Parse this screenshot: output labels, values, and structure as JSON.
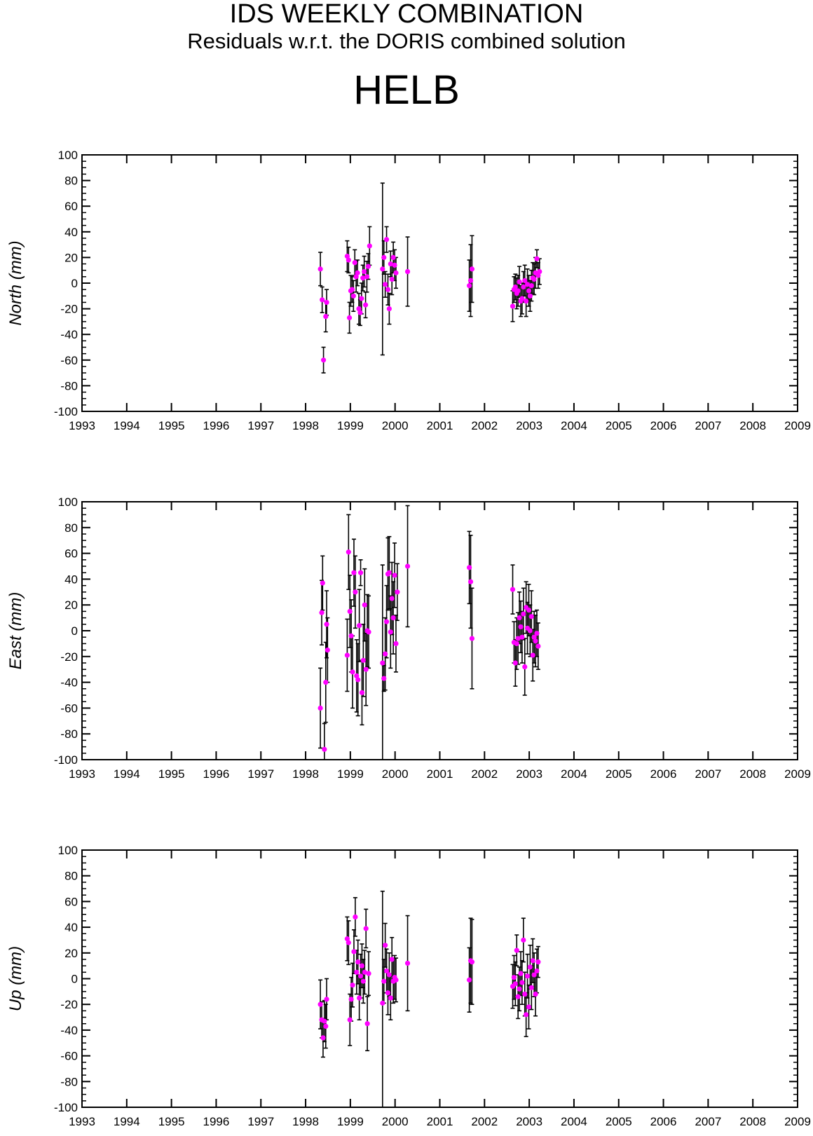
{
  "header": {
    "title": "IDS WEEKLY COMBINATION",
    "subtitle": "Residuals w.r.t. the DORIS combined solution",
    "station": "HELB"
  },
  "colors": {
    "point": "#ff00ff",
    "errorbar": "#000000",
    "axis": "#000000"
  },
  "chart_data": [
    {
      "type": "scatter",
      "ylabel": "North (mm)",
      "xlim": [
        1993,
        2009
      ],
      "ylim": [
        -100,
        100
      ],
      "xticks": [
        "1993",
        "1994",
        "1995",
        "1996",
        "1997",
        "1998",
        "1999",
        "2000",
        "2001",
        "2002",
        "2003",
        "2004",
        "2005",
        "2006",
        "2007",
        "2008",
        "2009"
      ],
      "yticks": [
        "100",
        "80",
        "60",
        "40",
        "20",
        "0",
        "-20",
        "-40",
        "-60",
        "-80",
        "-100"
      ],
      "points": [
        {
          "x": 1998.33,
          "y": 11,
          "err": 13
        },
        {
          "x": 1998.37,
          "y": -13,
          "err": 10
        },
        {
          "x": 1998.4,
          "y": -60,
          "err": 10
        },
        {
          "x": 1998.45,
          "y": -26,
          "err": 12
        },
        {
          "x": 1998.47,
          "y": -15,
          "err": 10
        },
        {
          "x": 1998.93,
          "y": 21,
          "err": 12
        },
        {
          "x": 1998.96,
          "y": 18,
          "err": 10
        },
        {
          "x": 1998.98,
          "y": -27,
          "err": 12
        },
        {
          "x": 1999.01,
          "y": -6,
          "err": 12
        },
        {
          "x": 1999.04,
          "y": -5,
          "err": 10
        },
        {
          "x": 1999.07,
          "y": -10,
          "err": 12
        },
        {
          "x": 1999.1,
          "y": 16,
          "err": 10
        },
        {
          "x": 1999.13,
          "y": 5,
          "err": 12
        },
        {
          "x": 1999.16,
          "y": 8,
          "err": 10
        },
        {
          "x": 1999.19,
          "y": -20,
          "err": 12
        },
        {
          "x": 1999.22,
          "y": -23,
          "err": 10
        },
        {
          "x": 1999.25,
          "y": -12,
          "err": 12
        },
        {
          "x": 1999.28,
          "y": 4,
          "err": 10
        },
        {
          "x": 1999.31,
          "y": 9,
          "err": 12
        },
        {
          "x": 1999.34,
          "y": -17,
          "err": 10
        },
        {
          "x": 1999.37,
          "y": 5,
          "err": 12
        },
        {
          "x": 1999.4,
          "y": 13,
          "err": 10
        },
        {
          "x": 1999.43,
          "y": 29,
          "err": 15
        },
        {
          "x": 1999.72,
          "y": 11,
          "err": 67
        },
        {
          "x": 1999.75,
          "y": 20,
          "err": 13
        },
        {
          "x": 1999.78,
          "y": -1,
          "err": 10
        },
        {
          "x": 1999.81,
          "y": 34,
          "err": 10
        },
        {
          "x": 1999.84,
          "y": -5,
          "err": 12
        },
        {
          "x": 1999.87,
          "y": -20,
          "err": 12
        },
        {
          "x": 1999.9,
          "y": 15,
          "err": 10
        },
        {
          "x": 1999.93,
          "y": 3,
          "err": 12
        },
        {
          "x": 1999.96,
          "y": 20,
          "err": 12
        },
        {
          "x": 1999.99,
          "y": 14,
          "err": 12
        },
        {
          "x": 2000.02,
          "y": 8,
          "err": 12
        },
        {
          "x": 2000.28,
          "y": 9,
          "err": 27
        },
        {
          "x": 2001.66,
          "y": -2,
          "err": 20
        },
        {
          "x": 2001.69,
          "y": 2,
          "err": 28
        },
        {
          "x": 2001.72,
          "y": 11,
          "err": 26
        },
        {
          "x": 2002.63,
          "y": -18,
          "err": 12
        },
        {
          "x": 2002.66,
          "y": -5,
          "err": 10
        },
        {
          "x": 2002.69,
          "y": -3,
          "err": 10
        },
        {
          "x": 2002.72,
          "y": -8,
          "err": 12
        },
        {
          "x": 2002.75,
          "y": -6,
          "err": 12
        },
        {
          "x": 2002.78,
          "y": 1,
          "err": 12
        },
        {
          "x": 2002.81,
          "y": -14,
          "err": 12
        },
        {
          "x": 2002.84,
          "y": -12,
          "err": 12
        },
        {
          "x": 2002.87,
          "y": -3,
          "err": 12
        },
        {
          "x": 2002.9,
          "y": 2,
          "err": 12
        },
        {
          "x": 2002.93,
          "y": -14,
          "err": 12
        },
        {
          "x": 2002.96,
          "y": -1,
          "err": 12
        },
        {
          "x": 2002.99,
          "y": -6,
          "err": 12
        },
        {
          "x": 2003.02,
          "y": -10,
          "err": 12
        },
        {
          "x": 2003.05,
          "y": -2,
          "err": 12
        },
        {
          "x": 2003.08,
          "y": 4,
          "err": 12
        },
        {
          "x": 2003.11,
          "y": 3,
          "err": 12
        },
        {
          "x": 2003.14,
          "y": 8,
          "err": 12
        },
        {
          "x": 2003.17,
          "y": 19,
          "err": 7
        },
        {
          "x": 2003.2,
          "y": 6,
          "err": 10
        },
        {
          "x": 2003.23,
          "y": 9,
          "err": 10
        }
      ]
    },
    {
      "type": "scatter",
      "ylabel": "East (mm)",
      "xlim": [
        1993,
        2009
      ],
      "ylim": [
        -100,
        100
      ],
      "xticks": [
        "1993",
        "1994",
        "1995",
        "1996",
        "1997",
        "1998",
        "1999",
        "2000",
        "2001",
        "2002",
        "2003",
        "2004",
        "2005",
        "2006",
        "2007",
        "2008",
        "2009"
      ],
      "yticks": [
        "100",
        "80",
        "60",
        "40",
        "20",
        "0",
        "-20",
        "-40",
        "-60",
        "-80",
        "-100"
      ],
      "points": [
        {
          "x": 1998.33,
          "y": -60,
          "err": 31
        },
        {
          "x": 1998.36,
          "y": 14,
          "err": 25
        },
        {
          "x": 1998.38,
          "y": 37,
          "err": 21
        },
        {
          "x": 1998.42,
          "y": -92,
          "err": 20
        },
        {
          "x": 1998.45,
          "y": -40,
          "err": 31
        },
        {
          "x": 1998.47,
          "y": 5,
          "err": 26
        },
        {
          "x": 1998.49,
          "y": -15,
          "err": 25
        },
        {
          "x": 1998.93,
          "y": -19,
          "err": 28
        },
        {
          "x": 1998.96,
          "y": 61,
          "err": 29
        },
        {
          "x": 1998.99,
          "y": 15,
          "err": 28
        },
        {
          "x": 1999.02,
          "y": -4,
          "err": 28
        },
        {
          "x": 1999.05,
          "y": -32,
          "err": 28
        },
        {
          "x": 1999.08,
          "y": 45,
          "err": 26
        },
        {
          "x": 1999.11,
          "y": 30,
          "err": 28
        },
        {
          "x": 1999.14,
          "y": -35,
          "err": 28
        },
        {
          "x": 1999.17,
          "y": -38,
          "err": 28
        },
        {
          "x": 1999.2,
          "y": 4,
          "err": 28
        },
        {
          "x": 1999.23,
          "y": 45,
          "err": 10
        },
        {
          "x": 1999.26,
          "y": -48,
          "err": 25
        },
        {
          "x": 1999.29,
          "y": -23,
          "err": 28
        },
        {
          "x": 1999.32,
          "y": 20,
          "err": 28
        },
        {
          "x": 1999.35,
          "y": -30,
          "err": 28
        },
        {
          "x": 1999.38,
          "y": 0,
          "err": 28
        },
        {
          "x": 1999.41,
          "y": -1,
          "err": 28
        },
        {
          "x": 1999.72,
          "y": -25,
          "err": 76
        },
        {
          "x": 1999.75,
          "y": -37,
          "err": 10
        },
        {
          "x": 1999.78,
          "y": -18,
          "err": 28
        },
        {
          "x": 1999.81,
          "y": 7,
          "err": 28
        },
        {
          "x": 1999.84,
          "y": 44,
          "err": 28
        },
        {
          "x": 1999.87,
          "y": 45,
          "err": 28
        },
        {
          "x": 1999.9,
          "y": -1,
          "err": 28
        },
        {
          "x": 1999.93,
          "y": 25,
          "err": 28
        },
        {
          "x": 1999.96,
          "y": 10,
          "err": 28
        },
        {
          "x": 1999.99,
          "y": 43,
          "err": 25
        },
        {
          "x": 2000.02,
          "y": -10,
          "err": 22
        },
        {
          "x": 2000.05,
          "y": 30,
          "err": 22
        },
        {
          "x": 2000.28,
          "y": 50,
          "err": 47
        },
        {
          "x": 2001.66,
          "y": 49,
          "err": 28
        },
        {
          "x": 2001.69,
          "y": 38,
          "err": 36
        },
        {
          "x": 2001.72,
          "y": -6,
          "err": 39
        },
        {
          "x": 2002.63,
          "y": 32,
          "err": 19
        },
        {
          "x": 2002.66,
          "y": -9,
          "err": 16
        },
        {
          "x": 2002.69,
          "y": -25,
          "err": 18
        },
        {
          "x": 2002.72,
          "y": -10,
          "err": 20
        },
        {
          "x": 2002.75,
          "y": -6,
          "err": 20
        },
        {
          "x": 2002.78,
          "y": 10,
          "err": 20
        },
        {
          "x": 2002.81,
          "y": 3,
          "err": 20
        },
        {
          "x": 2002.84,
          "y": -5,
          "err": 20
        },
        {
          "x": 2002.87,
          "y": 13,
          "err": 20
        },
        {
          "x": 2002.9,
          "y": -28,
          "err": 22
        },
        {
          "x": 2002.93,
          "y": 18,
          "err": 20
        },
        {
          "x": 2002.96,
          "y": 2,
          "err": 20
        },
        {
          "x": 2002.99,
          "y": 16,
          "err": 20
        },
        {
          "x": 2003.02,
          "y": 0,
          "err": 20
        },
        {
          "x": 2003.05,
          "y": 11,
          "err": 20
        },
        {
          "x": 2003.08,
          "y": -19,
          "err": 20
        },
        {
          "x": 2003.11,
          "y": -5,
          "err": 20
        },
        {
          "x": 2003.14,
          "y": -8,
          "err": 20
        },
        {
          "x": 2003.17,
          "y": -2,
          "err": 18
        },
        {
          "x": 2003.2,
          "y": -12,
          "err": 18
        }
      ]
    },
    {
      "type": "scatter",
      "ylabel": "Up (mm)",
      "xlim": [
        1993,
        2009
      ],
      "ylim": [
        -100,
        100
      ],
      "xticks": [
        "1993",
        "1994",
        "1995",
        "1996",
        "1997",
        "1998",
        "1999",
        "2000",
        "2001",
        "2002",
        "2003",
        "2004",
        "2005",
        "2006",
        "2007",
        "2008",
        "2009"
      ],
      "yticks": [
        "100",
        "80",
        "60",
        "40",
        "20",
        "0",
        "-20",
        "-40",
        "-60",
        "-80",
        "-100"
      ],
      "points": [
        {
          "x": 1998.33,
          "y": -20,
          "err": 19
        },
        {
          "x": 1998.36,
          "y": -32,
          "err": 14
        },
        {
          "x": 1998.39,
          "y": -46,
          "err": 15
        },
        {
          "x": 1998.42,
          "y": -33,
          "err": 16
        },
        {
          "x": 1998.45,
          "y": -37,
          "err": 17
        },
        {
          "x": 1998.47,
          "y": -16,
          "err": 16
        },
        {
          "x": 1998.93,
          "y": 31,
          "err": 17
        },
        {
          "x": 1998.96,
          "y": 28,
          "err": 17
        },
        {
          "x": 1998.99,
          "y": -32,
          "err": 20
        },
        {
          "x": 1999.02,
          "y": -16,
          "err": 17
        },
        {
          "x": 1999.05,
          "y": -5,
          "err": 17
        },
        {
          "x": 1999.08,
          "y": 21,
          "err": 17
        },
        {
          "x": 1999.11,
          "y": 48,
          "err": 15
        },
        {
          "x": 1999.14,
          "y": 5,
          "err": 17
        },
        {
          "x": 1999.17,
          "y": 13,
          "err": 17
        },
        {
          "x": 1999.2,
          "y": -15,
          "err": 17
        },
        {
          "x": 1999.23,
          "y": 2,
          "err": 17
        },
        {
          "x": 1999.26,
          "y": 10,
          "err": 17
        },
        {
          "x": 1999.29,
          "y": -2,
          "err": 17
        },
        {
          "x": 1999.32,
          "y": 5,
          "err": 17
        },
        {
          "x": 1999.35,
          "y": 39,
          "err": 15
        },
        {
          "x": 1999.38,
          "y": -35,
          "err": 21
        },
        {
          "x": 1999.41,
          "y": 4,
          "err": 17
        },
        {
          "x": 1999.72,
          "y": -19,
          "err": 87
        },
        {
          "x": 1999.75,
          "y": -2,
          "err": 17
        },
        {
          "x": 1999.78,
          "y": 26,
          "err": 17
        },
        {
          "x": 1999.81,
          "y": 6,
          "err": 17
        },
        {
          "x": 1999.84,
          "y": -11,
          "err": 17
        },
        {
          "x": 1999.87,
          "y": 3,
          "err": 17
        },
        {
          "x": 1999.9,
          "y": -15,
          "err": 17
        },
        {
          "x": 1999.93,
          "y": 15,
          "err": 17
        },
        {
          "x": 1999.96,
          "y": -2,
          "err": 17
        },
        {
          "x": 1999.99,
          "y": 1,
          "err": 17
        },
        {
          "x": 2000.02,
          "y": -1,
          "err": 17
        },
        {
          "x": 2000.28,
          "y": 12,
          "err": 37
        },
        {
          "x": 2001.66,
          "y": -1,
          "err": 25
        },
        {
          "x": 2001.69,
          "y": 14,
          "err": 33
        },
        {
          "x": 2001.72,
          "y": 13,
          "err": 33
        },
        {
          "x": 2002.63,
          "y": -6,
          "err": 17
        },
        {
          "x": 2002.66,
          "y": 1,
          "err": 17
        },
        {
          "x": 2002.69,
          "y": -4,
          "err": 17
        },
        {
          "x": 2002.72,
          "y": 22,
          "err": 12
        },
        {
          "x": 2002.75,
          "y": -14,
          "err": 17
        },
        {
          "x": 2002.78,
          "y": -8,
          "err": 17
        },
        {
          "x": 2002.81,
          "y": 4,
          "err": 17
        },
        {
          "x": 2002.84,
          "y": -3,
          "err": 17
        },
        {
          "x": 2002.87,
          "y": 30,
          "err": 17
        },
        {
          "x": 2002.9,
          "y": -12,
          "err": 17
        },
        {
          "x": 2002.93,
          "y": -28,
          "err": 17
        },
        {
          "x": 2002.96,
          "y": 2,
          "err": 17
        },
        {
          "x": 2002.99,
          "y": -22,
          "err": 17
        },
        {
          "x": 2003.02,
          "y": 9,
          "err": 17
        },
        {
          "x": 2003.05,
          "y": -7,
          "err": 17
        },
        {
          "x": 2003.08,
          "y": 14,
          "err": 17
        },
        {
          "x": 2003.11,
          "y": 3,
          "err": 17
        },
        {
          "x": 2003.14,
          "y": -12,
          "err": 17
        },
        {
          "x": 2003.17,
          "y": 6,
          "err": 17
        },
        {
          "x": 2003.2,
          "y": 13,
          "err": 12
        }
      ]
    }
  ]
}
